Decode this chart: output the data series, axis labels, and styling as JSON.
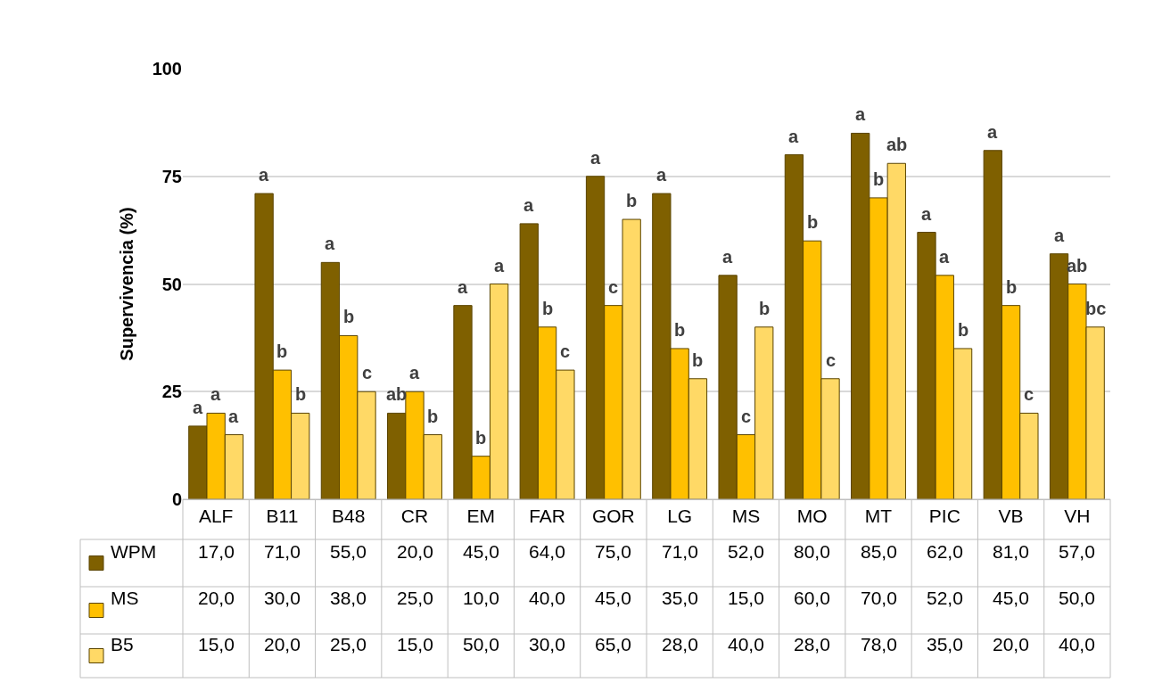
{
  "chart_data": {
    "type": "bar",
    "ylabel": "Supervivencia (%)",
    "categories": [
      "ALF",
      "B11",
      "B48",
      "CR",
      "EM",
      "FAR",
      "GOR",
      "LG",
      "MS",
      "MO",
      "MT",
      "PIC",
      "VB",
      "VH"
    ],
    "series": [
      {
        "name": "WPM",
        "color": "#7f6000",
        "values": [
          17.0,
          71.0,
          55.0,
          20.0,
          45.0,
          64.0,
          75.0,
          71.0,
          52.0,
          80.0,
          85.0,
          62.0,
          81.0,
          57.0
        ],
        "value_labels": [
          "17,0",
          "71,0",
          "55,0",
          "20,0",
          "45,0",
          "64,0",
          "75,0",
          "71,0",
          "52,0",
          "80,0",
          "85,0",
          "62,0",
          "81,0",
          "57,0"
        ]
      },
      {
        "name": "MS",
        "color": "#ffc000",
        "values": [
          20.0,
          30.0,
          38.0,
          25.0,
          10.0,
          40.0,
          45.0,
          35.0,
          15.0,
          60.0,
          70.0,
          52.0,
          45.0,
          50.0
        ],
        "value_labels": [
          "20,0",
          "30,0",
          "38,0",
          "25,0",
          "10,0",
          "40,0",
          "45,0",
          "35,0",
          "15,0",
          "60,0",
          "70,0",
          "52,0",
          "45,0",
          "50,0"
        ]
      },
      {
        "name": "B5",
        "color": "#ffd966",
        "values": [
          15.0,
          20.0,
          25.0,
          15.0,
          50.0,
          30.0,
          65.0,
          28.0,
          40.0,
          28.0,
          78.0,
          35.0,
          20.0,
          40.0
        ],
        "value_labels": [
          "15,0",
          "20,0",
          "25,0",
          "15,0",
          "50,0",
          "30,0",
          "65,0",
          "28,0",
          "40,0",
          "28,0",
          "78,0",
          "35,0",
          "20,0",
          "40,0"
        ]
      }
    ],
    "ylim": [
      0,
      100
    ],
    "yticks": [
      0,
      25,
      50,
      75,
      100
    ],
    "grid": "y",
    "legend": "bottom",
    "annotations": [
      "a",
      "a",
      "a",
      "a",
      "b",
      "b",
      "a",
      "b",
      "c",
      "ab",
      "a",
      "b",
      "a",
      "b",
      "a",
      "a",
      "b",
      "c",
      "a",
      "c",
      "b",
      "a",
      "b",
      "b",
      "a",
      "c",
      "b",
      "a",
      "b",
      "c",
      "a",
      "b",
      "ab",
      "a",
      "a",
      "b",
      "a",
      "b",
      "c",
      "a",
      "ab",
      "bc"
    ]
  }
}
